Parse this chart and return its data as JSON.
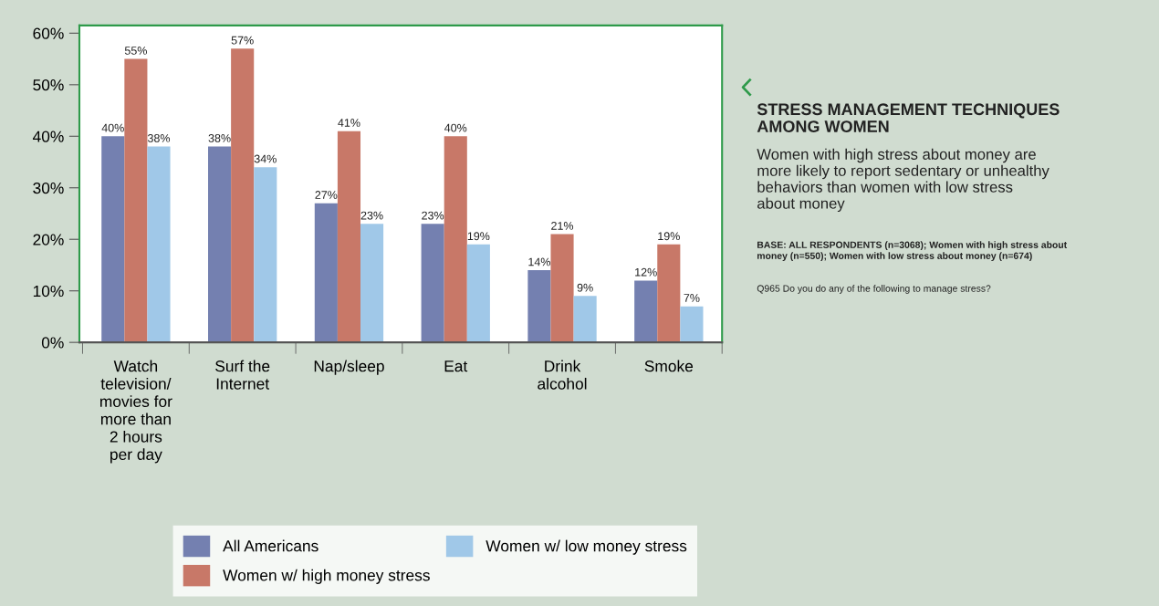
{
  "chart_data": {
    "type": "bar",
    "title": "STRESS MANAGEMENT TECHNIQUES\nAMONG WOMEN",
    "subtitle": "Women with high stress about money are\nmore likely to report sedentary or unhealthy\nbehaviors than women with low stress\nabout money",
    "annotations": [
      "BASE: ALL RESPONDENTS (n=3068); Women with high stress about\nmoney (n=550); Women with low stress about money (n=674)",
      "Q965 Do you do any of the following to manage stress?"
    ],
    "categories": [
      "Watch\ntelevision/\nmovies for\nmore than\n2 hours\nper day",
      "Surf the\nInternet",
      "Nap/sleep",
      "Eat",
      "Drink\nalcohol",
      "Smoke"
    ],
    "series": [
      {
        "name": "All Americans",
        "color": "#7480b0",
        "values": [
          40,
          38,
          27,
          23,
          14,
          12
        ],
        "value_labels": [
          "40%",
          "38%",
          "27%",
          "23%",
          "14%",
          "12%"
        ]
      },
      {
        "name": "Women w/ high money stress",
        "color": "#c87868",
        "values": [
          55,
          57,
          41,
          40,
          21,
          19
        ],
        "value_labels": [
          "55%",
          "57%",
          "41%",
          "40%",
          "21%",
          "19%"
        ]
      },
      {
        "name": "Women w/ low money stress",
        "color": "#a0c8e8",
        "values": [
          38,
          34,
          23,
          19,
          9,
          7
        ],
        "value_labels": [
          "38%",
          "34%",
          "23%",
          "19%",
          "9%",
          "7%"
        ]
      }
    ],
    "ylim": [
      0,
      61.5
    ],
    "yticks": [
      {
        "value": 0,
        "label": "0%"
      },
      {
        "value": 10,
        "label": "10%"
      },
      {
        "value": 20,
        "label": "20%"
      },
      {
        "value": 30,
        "label": "30%"
      },
      {
        "value": 40,
        "label": "40%"
      },
      {
        "value": 50,
        "label": "50%"
      },
      {
        "value": 60,
        "label": "60%"
      }
    ],
    "grid": false,
    "legend": "bottom"
  }
}
